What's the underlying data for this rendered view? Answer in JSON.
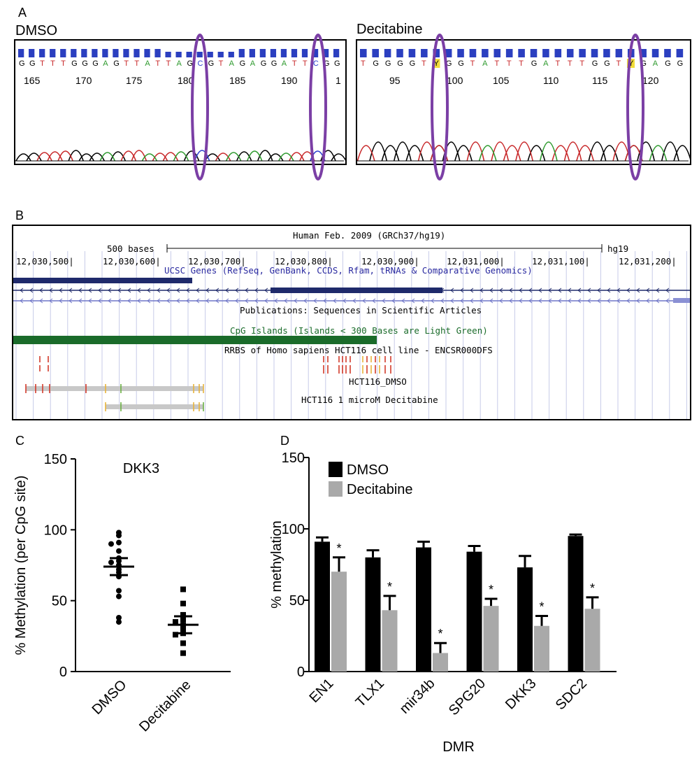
{
  "panels": {
    "a": "A",
    "b": "B",
    "c": "C",
    "d": "D"
  },
  "panel_a": {
    "dmso": {
      "title": "DMSO",
      "sequence": [
        "G",
        "G",
        "T",
        "T",
        "T",
        "G",
        "G",
        "G",
        "A",
        "G",
        "T",
        "T",
        "A",
        "T",
        "T",
        "A",
        "G",
        "C",
        "G",
        "T",
        "A",
        "G",
        "A",
        "G",
        "G",
        "A",
        "T",
        "T",
        "C",
        "G",
        "G"
      ],
      "positions": [
        "165",
        "170",
        "175",
        "180",
        "185",
        "190",
        "1"
      ]
    },
    "decitabine": {
      "title": "Decitabine",
      "sequence": [
        "T",
        "G",
        "G",
        "G",
        "G",
        "T",
        "Y",
        "G",
        "G",
        "T",
        "A",
        "T",
        "T",
        "T",
        "G",
        "A",
        "T",
        "T",
        "T",
        "G",
        "G",
        "T",
        "Y",
        "G",
        "A",
        "G",
        "G"
      ],
      "positions": [
        "95",
        "100",
        "105",
        "110",
        "115",
        "120"
      ]
    }
  },
  "panel_b": {
    "assembly": "Human Feb. 2009 (GRCh37/hg19)",
    "scale_label": "500 bases",
    "genome": "hg19",
    "coords": [
      "12,030,500|",
      "12,030,600|",
      "12,030,700|",
      "12,030,800|",
      "12,030,900|",
      "12,031,000|",
      "12,031,100|",
      "12,031,200|"
    ],
    "tracks": {
      "genes": "UCSC Genes (RefSeq, GenBank, CCDS, Rfam, tRNAs & Comparative Genomics)",
      "publications": "Publications: Sequences in Scientific Articles",
      "cpg": "CpG Islands (Islands < 300 Bases are Light Green)",
      "rrbs": "RRBS of Homo sapiens HCT116 cell line - ENCSR000DFS",
      "dmso": "HCT116_DMSO",
      "decitabine": "HCT116 1 microM Decitabine"
    },
    "colors": {
      "gene": "#1f2a6b",
      "cpg": "#1a6b2a",
      "accent": "#7b3fa5"
    }
  },
  "chart_data": [
    {
      "type": "scatter",
      "title": "DKK3",
      "ylabel": "% Methylation (per CpG site)",
      "categories": [
        "DMSO",
        "Decitabine"
      ],
      "ylim": [
        0,
        150
      ],
      "yticks": [
        "0",
        "50",
        "100",
        "150"
      ],
      "series": [
        {
          "name": "DMSO",
          "values": [
            98,
            96,
            91,
            90,
            85,
            80,
            78,
            77,
            75,
            72,
            70,
            67,
            57,
            53,
            38,
            35
          ],
          "mean": 74,
          "sem": 6
        },
        {
          "name": "Decitabine",
          "values": [
            58,
            48,
            40,
            37,
            35,
            33,
            30,
            27,
            26,
            20,
            13
          ],
          "mean": 33,
          "sem": 6
        }
      ]
    },
    {
      "type": "bar",
      "xlabel": "DMR",
      "ylabel": "% methylation",
      "categories": [
        "EN1",
        "TLX1",
        "mir34b",
        "SPG20",
        "DKK3",
        "SDC2"
      ],
      "ylim": [
        0,
        150
      ],
      "yticks": [
        "0",
        "50",
        "100",
        "150"
      ],
      "legend_position": "top-left",
      "series": [
        {
          "name": "DMSO",
          "color": "#000000",
          "values": [
            91,
            80,
            87,
            84,
            73,
            95
          ],
          "errors": [
            3,
            5,
            4,
            4,
            8,
            1
          ]
        },
        {
          "name": "Decitabine",
          "color": "#a9a9a9",
          "values": [
            70,
            43,
            13,
            46,
            32,
            44
          ],
          "errors": [
            10,
            10,
            7,
            5,
            7,
            8
          ]
        }
      ],
      "significance_marker": "*"
    }
  ]
}
